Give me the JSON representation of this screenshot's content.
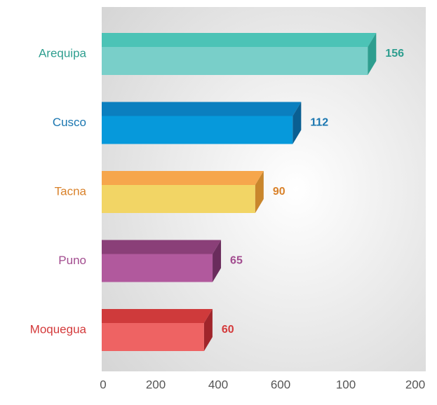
{
  "chart_data": {
    "type": "bar3d",
    "categories": [
      "Arequipa",
      "Cusco",
      "Tacna",
      "Puno",
      "Moquegua"
    ],
    "values": [
      156,
      112,
      90,
      65,
      60
    ],
    "front_colors": [
      "#79cfc9",
      "#0699db",
      "#f2d565",
      "#b1599d",
      "#ee6363"
    ],
    "top_colors": [
      "#4cc3b6",
      "#0b7fbf",
      "#f6a64c",
      "#8a3f78",
      "#cf3a3b"
    ],
    "side_colors": [
      "#2e9e8f",
      "#0a5f92",
      "#c9862c",
      "#6a2c5c",
      "#a0252b"
    ],
    "label_colors": [
      "#2e9e8f",
      "#1a76b0",
      "#d9822b",
      "#a24c8f",
      "#d43a3b"
    ],
    "xlim": [
      0,
      190
    ],
    "x_axis_labels": [
      "0",
      "200",
      "400",
      "600",
      "100",
      "200"
    ]
  }
}
